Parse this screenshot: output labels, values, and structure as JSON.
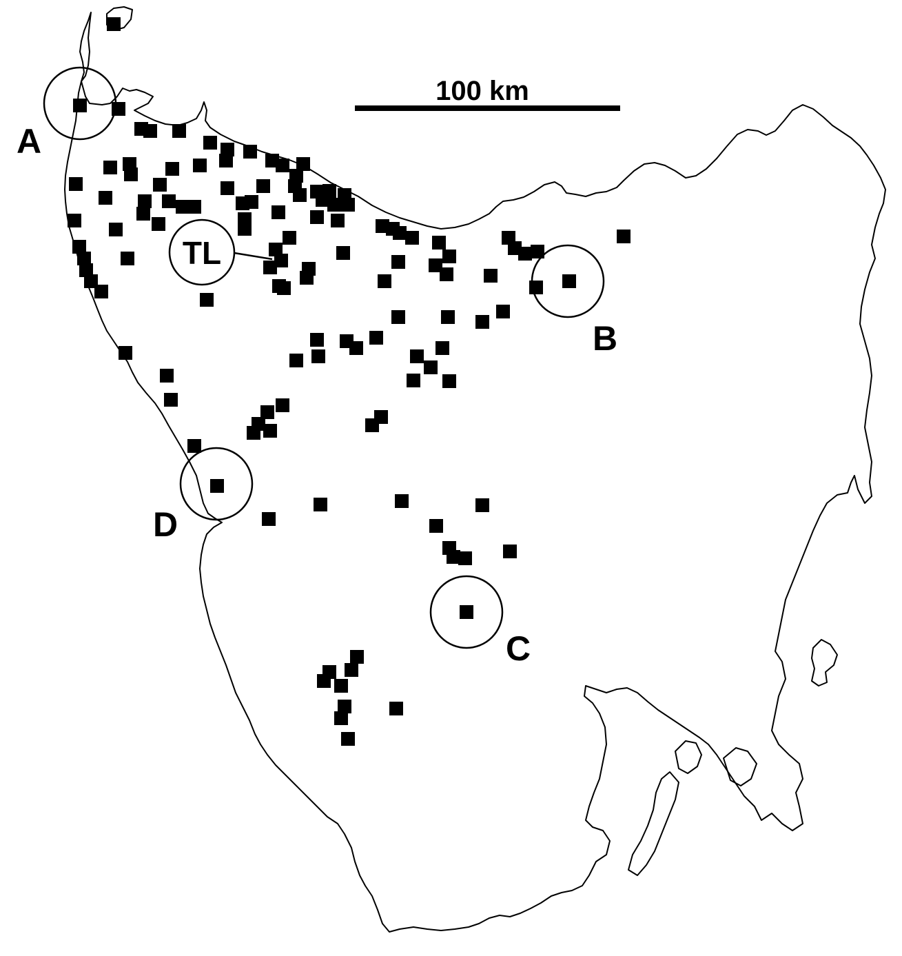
{
  "scale_bar": {
    "label": "100 km"
  },
  "sites": [
    {
      "name": "A",
      "label": "A"
    },
    {
      "name": "B",
      "label": "B"
    },
    {
      "name": "C",
      "label": "C"
    },
    {
      "name": "D",
      "label": "D"
    },
    {
      "name": "TL",
      "label": "TL"
    }
  ],
  "colors": {
    "ink": "#000000",
    "background": "#ffffff"
  },
  "symbols": {
    "record": "filled-square",
    "site_ring": "circle"
  }
}
